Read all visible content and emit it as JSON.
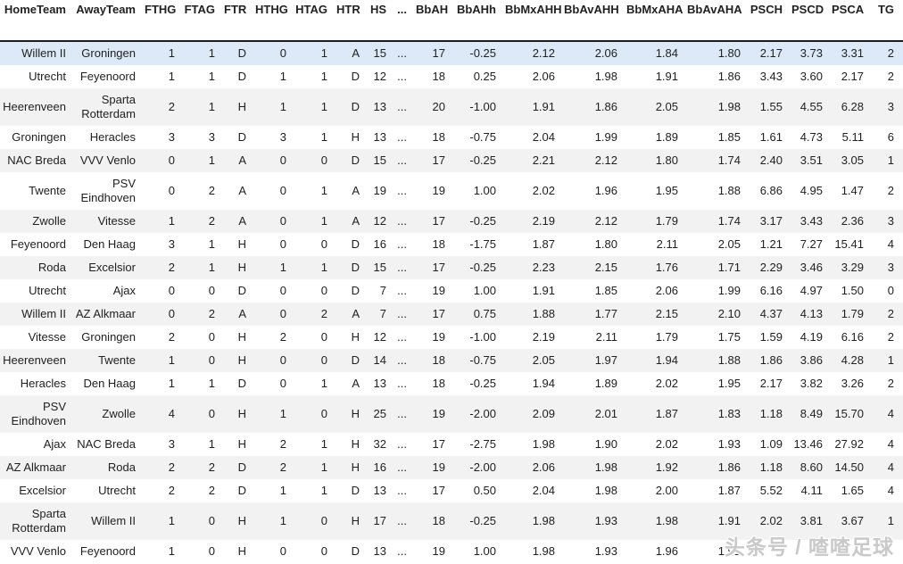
{
  "table": {
    "columns": [
      "HomeTeam",
      "AwayTeam",
      "FTHG",
      "FTAG",
      "FTR",
      "HTHG",
      "HTAG",
      "HTR",
      "HS",
      "...",
      "BbAH",
      "BbAHh",
      "BbMxAHH",
      "BbAvAHH",
      "BbMxAHA",
      "BbAvAHA",
      "PSCH",
      "PSCD",
      "PSCA",
      "TG"
    ],
    "column_slugs": [
      "hometeam",
      "awayteam",
      "fthg",
      "ftag",
      "ftr",
      "hthg",
      "htag",
      "htr",
      "hs",
      "ellipsis",
      "bbah",
      "bbahh",
      "bbmxahh",
      "bbavahh",
      "bbmxaha",
      "bbavaha",
      "psch",
      "pscd",
      "psca",
      "tg"
    ],
    "highlighted_row": 0,
    "rows": [
      [
        "Willem II",
        "Groningen",
        "1",
        "1",
        "D",
        "0",
        "1",
        "A",
        "15",
        "...",
        "17",
        "-0.25",
        "2.12",
        "2.06",
        "1.84",
        "1.80",
        "2.17",
        "3.73",
        "3.31",
        "2"
      ],
      [
        "Utrecht",
        "Feyenoord",
        "1",
        "1",
        "D",
        "1",
        "1",
        "D",
        "12",
        "...",
        "18",
        "0.25",
        "2.06",
        "1.98",
        "1.91",
        "1.86",
        "3.43",
        "3.60",
        "2.17",
        "2"
      ],
      [
        "Heerenveen",
        "Sparta Rotterdam",
        "2",
        "1",
        "H",
        "1",
        "1",
        "D",
        "13",
        "...",
        "20",
        "-1.00",
        "1.91",
        "1.86",
        "2.05",
        "1.98",
        "1.55",
        "4.55",
        "6.28",
        "3"
      ],
      [
        "Groningen",
        "Heracles",
        "3",
        "3",
        "D",
        "3",
        "1",
        "H",
        "13",
        "...",
        "18",
        "-0.75",
        "2.04",
        "1.99",
        "1.89",
        "1.85",
        "1.61",
        "4.73",
        "5.11",
        "6"
      ],
      [
        "NAC Breda",
        "VVV Venlo",
        "0",
        "1",
        "A",
        "0",
        "0",
        "D",
        "15",
        "...",
        "17",
        "-0.25",
        "2.21",
        "2.12",
        "1.80",
        "1.74",
        "2.40",
        "3.51",
        "3.05",
        "1"
      ],
      [
        "Twente",
        "PSV Eindhoven",
        "0",
        "2",
        "A",
        "0",
        "1",
        "A",
        "19",
        "...",
        "19",
        "1.00",
        "2.02",
        "1.96",
        "1.95",
        "1.88",
        "6.86",
        "4.95",
        "1.47",
        "2"
      ],
      [
        "Zwolle",
        "Vitesse",
        "1",
        "2",
        "A",
        "0",
        "1",
        "A",
        "12",
        "...",
        "17",
        "-0.25",
        "2.19",
        "2.12",
        "1.79",
        "1.74",
        "3.17",
        "3.43",
        "2.36",
        "3"
      ],
      [
        "Feyenoord",
        "Den Haag",
        "3",
        "1",
        "H",
        "0",
        "0",
        "D",
        "16",
        "...",
        "18",
        "-1.75",
        "1.87",
        "1.80",
        "2.11",
        "2.05",
        "1.21",
        "7.27",
        "15.41",
        "4"
      ],
      [
        "Roda",
        "Excelsior",
        "2",
        "1",
        "H",
        "1",
        "1",
        "D",
        "15",
        "...",
        "17",
        "-0.25",
        "2.23",
        "2.15",
        "1.76",
        "1.71",
        "2.29",
        "3.46",
        "3.29",
        "3"
      ],
      [
        "Utrecht",
        "Ajax",
        "0",
        "0",
        "D",
        "0",
        "0",
        "D",
        "7",
        "...",
        "19",
        "1.00",
        "1.91",
        "1.85",
        "2.06",
        "1.99",
        "6.16",
        "4.97",
        "1.50",
        "0"
      ],
      [
        "Willem II",
        "AZ Alkmaar",
        "0",
        "2",
        "A",
        "0",
        "2",
        "A",
        "7",
        "...",
        "17",
        "0.75",
        "1.88",
        "1.77",
        "2.15",
        "2.10",
        "4.37",
        "4.13",
        "1.79",
        "2"
      ],
      [
        "Vitesse",
        "Groningen",
        "2",
        "0",
        "H",
        "2",
        "0",
        "H",
        "12",
        "...",
        "19",
        "-1.00",
        "2.19",
        "2.11",
        "1.79",
        "1.75",
        "1.59",
        "4.19",
        "6.16",
        "2"
      ],
      [
        "Heerenveen",
        "Twente",
        "1",
        "0",
        "H",
        "0",
        "0",
        "D",
        "14",
        "...",
        "18",
        "-0.75",
        "2.05",
        "1.97",
        "1.94",
        "1.88",
        "1.86",
        "3.86",
        "4.28",
        "1"
      ],
      [
        "Heracles",
        "Den Haag",
        "1",
        "1",
        "D",
        "0",
        "1",
        "A",
        "13",
        "...",
        "18",
        "-0.25",
        "1.94",
        "1.89",
        "2.02",
        "1.95",
        "2.17",
        "3.82",
        "3.26",
        "2"
      ],
      [
        "PSV Eindhoven",
        "Zwolle",
        "4",
        "0",
        "H",
        "1",
        "0",
        "H",
        "25",
        "...",
        "19",
        "-2.00",
        "2.09",
        "2.01",
        "1.87",
        "1.83",
        "1.18",
        "8.49",
        "15.70",
        "4"
      ],
      [
        "Ajax",
        "NAC Breda",
        "3",
        "1",
        "H",
        "2",
        "1",
        "H",
        "32",
        "...",
        "17",
        "-2.75",
        "1.98",
        "1.90",
        "2.02",
        "1.93",
        "1.09",
        "13.46",
        "27.92",
        "4"
      ],
      [
        "AZ Alkmaar",
        "Roda",
        "2",
        "2",
        "D",
        "2",
        "1",
        "H",
        "16",
        "...",
        "19",
        "-2.00",
        "2.06",
        "1.98",
        "1.92",
        "1.86",
        "1.18",
        "8.60",
        "14.50",
        "4"
      ],
      [
        "Excelsior",
        "Utrecht",
        "2",
        "2",
        "D",
        "1",
        "1",
        "D",
        "13",
        "...",
        "17",
        "0.50",
        "2.04",
        "1.98",
        "2.00",
        "1.87",
        "5.52",
        "4.11",
        "1.65",
        "4"
      ],
      [
        "Sparta Rotterdam",
        "Willem II",
        "1",
        "0",
        "H",
        "1",
        "0",
        "H",
        "17",
        "...",
        "18",
        "-0.25",
        "1.98",
        "1.93",
        "1.98",
        "1.91",
        "2.02",
        "3.81",
        "3.67",
        "1"
      ],
      [
        "VVV Venlo",
        "Feyenoord",
        "1",
        "0",
        "H",
        "0",
        "0",
        "D",
        "13",
        "...",
        "19",
        "1.00",
        "1.98",
        "1.93",
        "1.96",
        "1.91",
        "",
        "",
        "",
        ""
      ]
    ]
  },
  "watermark": {
    "text": "头条号 / 喳喳足球"
  },
  "colors": {
    "highlight_row_bg": "#dbe9f8",
    "stripe_row_bg": "#f2f2f2",
    "header_rule": "#1c1c1c",
    "text": "#212121",
    "watermark_text": "#c9c9c9"
  }
}
